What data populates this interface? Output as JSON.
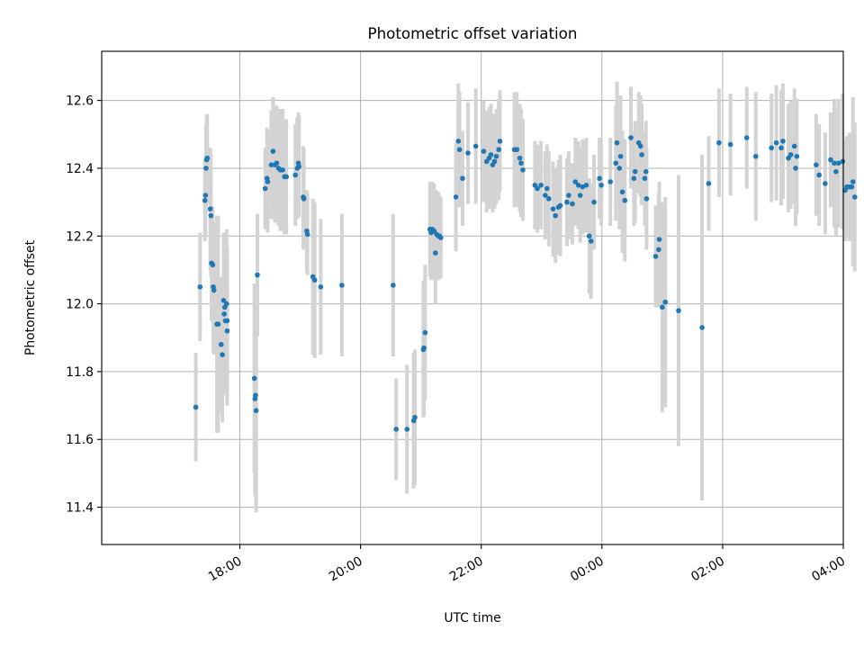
{
  "chart_data": {
    "type": "scatter",
    "title": "Photometric offset variation",
    "xlabel": "UTC time",
    "ylabel": "Photometric offset",
    "x_units": "hours since 17:00 UTC",
    "xlim": [
      -1.29,
      11.0
    ],
    "ylim": [
      11.29,
      12.745
    ],
    "grid": true,
    "legend": "none",
    "x_ticks": [
      {
        "value": 1,
        "label": "18:00"
      },
      {
        "value": 3,
        "label": "20:00"
      },
      {
        "value": 5,
        "label": "22:00"
      },
      {
        "value": 7,
        "label": "00:00"
      },
      {
        "value": 9,
        "label": "02:00"
      },
      {
        "value": 11,
        "label": "04:00"
      }
    ],
    "y_ticks": [
      {
        "value": 11.4,
        "label": "11.4"
      },
      {
        "value": 11.6,
        "label": "11.6"
      },
      {
        "value": 11.8,
        "label": "11.8"
      },
      {
        "value": 12.0,
        "label": "12.0"
      },
      {
        "value": 12.2,
        "label": "12.2"
      },
      {
        "value": 12.4,
        "label": "12.4"
      },
      {
        "value": 12.6,
        "label": "12.6"
      }
    ],
    "colors": {
      "point": "#1f77b4",
      "errorbar": "#d3d3d3",
      "grid": "#b0b0b0"
    },
    "series": [
      {
        "name": "Photometric offset",
        "points": [
          [
            0.27,
            11.695,
            0.16
          ],
          [
            0.34,
            12.05,
            0.16
          ],
          [
            0.42,
            12.305,
            0.12
          ],
          [
            0.43,
            12.32,
            0.12
          ],
          [
            0.44,
            12.4,
            0.13
          ],
          [
            0.45,
            12.425,
            0.13
          ],
          [
            0.46,
            12.43,
            0.13
          ],
          [
            0.51,
            12.28,
            0.18
          ],
          [
            0.52,
            12.26,
            0.18
          ],
          [
            0.53,
            12.12,
            0.17
          ],
          [
            0.55,
            12.115,
            0.17
          ],
          [
            0.56,
            12.05,
            0.19
          ],
          [
            0.57,
            12.04,
            0.19
          ],
          [
            0.62,
            11.94,
            0.32
          ],
          [
            0.64,
            11.94,
            0.32
          ],
          [
            0.69,
            11.88,
            0.2
          ],
          [
            0.71,
            11.85,
            0.2
          ],
          [
            0.73,
            12.01,
            0.2
          ],
          [
            0.74,
            11.97,
            0.2
          ],
          [
            0.75,
            11.99,
            0.2
          ],
          [
            0.76,
            11.95,
            0.22
          ],
          [
            0.78,
            12.0,
            0.22
          ],
          [
            0.79,
            11.95,
            0.22
          ],
          [
            0.79,
            11.92,
            0.22
          ],
          [
            1.24,
            11.78,
            0.28
          ],
          [
            1.25,
            11.72,
            0.28
          ],
          [
            1.26,
            11.73,
            0.3
          ],
          [
            1.27,
            11.685,
            0.3
          ],
          [
            1.29,
            12.085,
            0.18
          ],
          [
            1.42,
            12.34,
            0.12
          ],
          [
            1.45,
            12.37,
            0.15
          ],
          [
            1.46,
            12.36,
            0.15
          ],
          [
            1.52,
            12.41,
            0.16
          ],
          [
            1.55,
            12.45,
            0.16
          ],
          [
            1.58,
            12.41,
            0.17
          ],
          [
            1.61,
            12.415,
            0.17
          ],
          [
            1.64,
            12.4,
            0.17
          ],
          [
            1.67,
            12.395,
            0.18
          ],
          [
            1.71,
            12.395,
            0.18
          ],
          [
            1.74,
            12.375,
            0.17
          ],
          [
            1.77,
            12.375,
            0.17
          ],
          [
            1.92,
            12.38,
            0.15
          ],
          [
            1.95,
            12.4,
            0.15
          ],
          [
            1.97,
            12.415,
            0.15
          ],
          [
            1.98,
            12.405,
            0.15
          ],
          [
            2.05,
            12.315,
            0.15
          ],
          [
            2.06,
            12.31,
            0.15
          ],
          [
            2.11,
            12.215,
            0.12
          ],
          [
            2.12,
            12.205,
            0.12
          ],
          [
            2.21,
            12.08,
            0.23
          ],
          [
            2.24,
            12.07,
            0.23
          ],
          [
            2.34,
            12.05,
            0.2
          ],
          [
            2.69,
            12.055,
            0.21
          ],
          [
            3.54,
            12.055,
            0.21
          ],
          [
            3.59,
            11.63,
            0.15
          ],
          [
            3.77,
            11.63,
            0.19
          ],
          [
            3.88,
            11.655,
            0.2
          ],
          [
            3.9,
            11.665,
            0.2
          ],
          [
            4.04,
            11.865,
            0.2
          ],
          [
            4.05,
            11.87,
            0.2
          ],
          [
            4.07,
            11.915,
            0.2
          ],
          [
            4.15,
            12.22,
            0.14
          ],
          [
            4.17,
            12.21,
            0.14
          ],
          [
            4.19,
            12.22,
            0.14
          ],
          [
            4.22,
            12.215,
            0.14
          ],
          [
            4.24,
            12.15,
            0.15
          ],
          [
            4.26,
            12.205,
            0.13
          ],
          [
            4.29,
            12.2,
            0.13
          ],
          [
            4.31,
            12.2,
            0.12
          ],
          [
            4.33,
            12.195,
            0.12
          ],
          [
            4.58,
            12.315,
            0.16
          ],
          [
            4.62,
            12.48,
            0.17
          ],
          [
            4.64,
            12.455,
            0.17
          ],
          [
            4.69,
            12.37,
            0.14
          ],
          [
            4.78,
            12.445,
            0.15
          ],
          [
            4.91,
            12.465,
            0.17
          ],
          [
            5.04,
            12.45,
            0.15
          ],
          [
            5.09,
            12.42,
            0.15
          ],
          [
            5.13,
            12.43,
            0.15
          ],
          [
            5.16,
            12.44,
            0.15
          ],
          [
            5.19,
            12.41,
            0.14
          ],
          [
            5.22,
            12.42,
            0.14
          ],
          [
            5.25,
            12.435,
            0.14
          ],
          [
            5.29,
            12.455,
            0.15
          ],
          [
            5.31,
            12.48,
            0.15
          ],
          [
            5.55,
            12.455,
            0.17
          ],
          [
            5.59,
            12.455,
            0.17
          ],
          [
            5.64,
            12.43,
            0.16
          ],
          [
            5.66,
            12.415,
            0.16
          ],
          [
            5.69,
            12.395,
            0.15
          ],
          [
            5.89,
            12.35,
            0.13
          ],
          [
            5.93,
            12.34,
            0.13
          ],
          [
            5.99,
            12.35,
            0.13
          ],
          [
            6.06,
            12.32,
            0.13
          ],
          [
            6.09,
            12.34,
            0.13
          ],
          [
            6.12,
            12.31,
            0.14
          ],
          [
            6.19,
            12.28,
            0.14
          ],
          [
            6.23,
            12.26,
            0.14
          ],
          [
            6.28,
            12.285,
            0.14
          ],
          [
            6.31,
            12.29,
            0.15
          ],
          [
            6.42,
            12.3,
            0.13
          ],
          [
            6.45,
            12.32,
            0.13
          ],
          [
            6.51,
            12.295,
            0.12
          ],
          [
            6.56,
            12.36,
            0.13
          ],
          [
            6.61,
            12.35,
            0.13
          ],
          [
            6.64,
            12.32,
            0.14
          ],
          [
            6.68,
            12.345,
            0.14
          ],
          [
            6.74,
            12.35,
            0.14
          ],
          [
            6.79,
            12.2,
            0.17
          ],
          [
            6.82,
            12.185,
            0.17
          ],
          [
            6.87,
            12.3,
            0.14
          ],
          [
            6.96,
            12.37,
            0.12
          ],
          [
            6.99,
            12.35,
            0.12
          ],
          [
            7.14,
            12.36,
            0.13
          ],
          [
            7.23,
            12.415,
            0.17
          ],
          [
            7.25,
            12.475,
            0.18
          ],
          [
            7.29,
            12.4,
            0.18
          ],
          [
            7.31,
            12.435,
            0.18
          ],
          [
            7.34,
            12.33,
            0.18
          ],
          [
            7.38,
            12.305,
            0.18
          ],
          [
            7.48,
            12.49,
            0.15
          ],
          [
            7.53,
            12.37,
            0.14
          ],
          [
            7.55,
            12.39,
            0.15
          ],
          [
            7.61,
            12.475,
            0.15
          ],
          [
            7.64,
            12.465,
            0.15
          ],
          [
            7.66,
            12.44,
            0.15
          ],
          [
            7.71,
            12.37,
            0.14
          ],
          [
            7.73,
            12.39,
            0.15
          ],
          [
            7.74,
            12.31,
            0.15
          ],
          [
            7.89,
            12.14,
            0.15
          ],
          [
            7.94,
            12.16,
            0.17
          ],
          [
            7.95,
            12.19,
            0.17
          ],
          [
            8.0,
            11.99,
            0.31
          ],
          [
            8.05,
            12.005,
            0.31
          ],
          [
            8.27,
            11.98,
            0.4
          ],
          [
            8.66,
            11.93,
            0.51
          ],
          [
            8.77,
            12.355,
            0.14
          ],
          [
            8.94,
            12.475,
            0.16
          ],
          [
            9.13,
            12.47,
            0.15
          ],
          [
            9.4,
            12.49,
            0.15
          ],
          [
            9.55,
            12.435,
            0.19
          ],
          [
            9.81,
            12.46,
            0.16
          ],
          [
            9.89,
            12.475,
            0.17
          ],
          [
            9.97,
            12.46,
            0.17
          ],
          [
            10.0,
            12.48,
            0.17
          ],
          [
            10.09,
            12.43,
            0.16
          ],
          [
            10.13,
            12.44,
            0.16
          ],
          [
            10.19,
            12.465,
            0.17
          ],
          [
            10.21,
            12.4,
            0.17
          ],
          [
            10.23,
            12.435,
            0.17
          ],
          [
            10.55,
            12.41,
            0.15
          ],
          [
            10.6,
            12.38,
            0.15
          ],
          [
            10.7,
            12.355,
            0.15
          ],
          [
            10.79,
            12.425,
            0.14
          ],
          [
            10.85,
            12.415,
            0.19
          ],
          [
            10.88,
            12.39,
            0.19
          ],
          [
            10.92,
            12.415,
            0.19
          ],
          [
            10.99,
            12.42,
            0.2
          ],
          [
            11.03,
            12.335,
            0.15
          ],
          [
            11.06,
            12.345,
            0.15
          ],
          [
            11.1,
            12.345,
            0.16
          ],
          [
            11.14,
            12.345,
            0.16
          ],
          [
            11.16,
            12.36,
            0.25
          ],
          [
            11.19,
            12.315,
            0.22
          ]
        ]
      }
    ]
  }
}
